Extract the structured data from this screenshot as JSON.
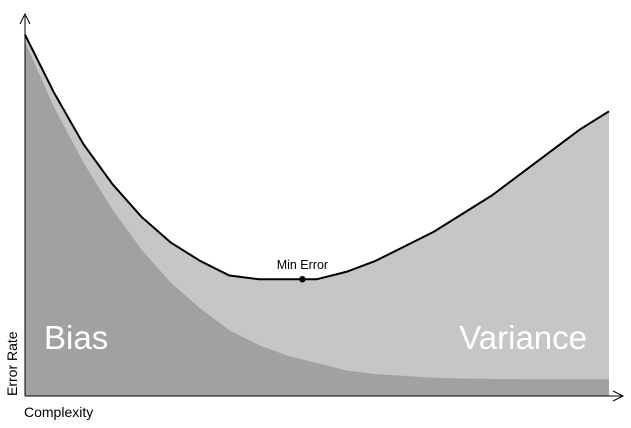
{
  "chart_data": {
    "type": "area",
    "xlabel": "Complexity",
    "ylabel": "Error Rate",
    "xlim": [
      0,
      1
    ],
    "ylim": [
      0,
      1
    ],
    "grid": false,
    "x": [
      0,
      0.05,
      0.1,
      0.15,
      0.2,
      0.25,
      0.3,
      0.35,
      0.4,
      0.45,
      0.5,
      0.55,
      0.6,
      0.65,
      0.7,
      0.75,
      0.8,
      0.85,
      0.9,
      0.95,
      1.0
    ],
    "series": [
      {
        "name": "Bias",
        "color": "#a1a1a1",
        "values": [
          0.97,
          0.79,
          0.64,
          0.51,
          0.4,
          0.31,
          0.24,
          0.18,
          0.14,
          0.11,
          0.09,
          0.07,
          0.06,
          0.055,
          0.05,
          0.048,
          0.047,
          0.046,
          0.046,
          0.046,
          0.046
        ]
      },
      {
        "name": "Variance",
        "color": "#c6c6c6",
        "values": [
          0.0,
          0.015,
          0.03,
          0.05,
          0.07,
          0.09,
          0.11,
          0.14,
          0.17,
          0.2,
          0.23,
          0.27,
          0.32,
          0.38,
          0.44,
          0.5,
          0.56,
          0.62,
          0.68,
          0.74,
          0.72
        ]
      }
    ],
    "total_error": {
      "color": "#000000",
      "values": [
        0.99,
        0.83,
        0.69,
        0.58,
        0.49,
        0.42,
        0.37,
        0.33,
        0.32,
        0.32,
        0.32,
        0.34,
        0.37,
        0.41,
        0.45,
        0.5,
        0.55,
        0.61,
        0.67,
        0.73,
        0.78
      ]
    },
    "annotations": [
      {
        "text": "Min Error",
        "x": 0.475,
        "y": 0.32
      }
    ],
    "region_labels": {
      "bias": "Bias",
      "variance": "Variance"
    }
  }
}
